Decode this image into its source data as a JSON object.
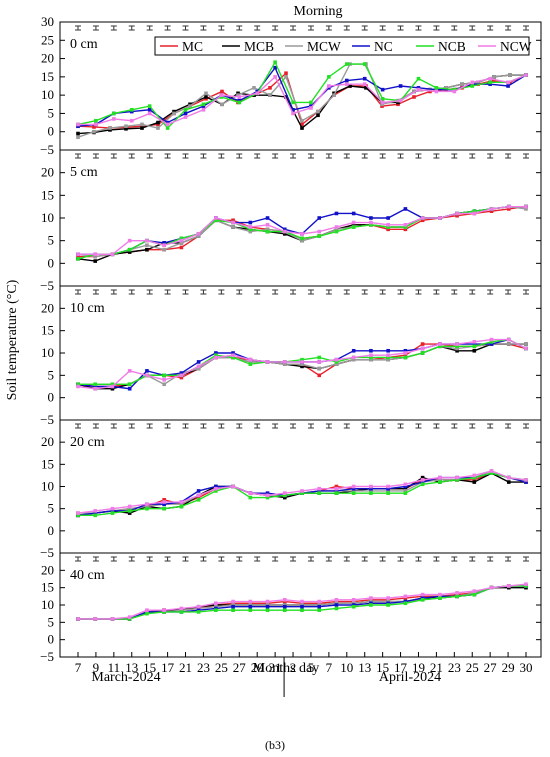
{
  "chart_data": {
    "type": "line",
    "title": "Morning",
    "ylabel": "Soil temperature (°C)",
    "xlabel": "Months day",
    "month_labels": [
      "March-2024",
      "April-2024"
    ],
    "panel_letter": "(b3)",
    "x_tick_labels": [
      "7",
      "9",
      "11",
      "13",
      "15",
      "17",
      "21",
      "23",
      "25",
      "27",
      "29",
      "31",
      "2",
      "5",
      "7",
      "10",
      "13",
      "15",
      "17",
      "19",
      "21",
      "23",
      "25",
      "27",
      "29",
      "30"
    ],
    "y_tick_labels": [
      "−5",
      "0",
      "5",
      "10",
      "15",
      "20",
      "25",
      "30"
    ],
    "ylim": [
      -5,
      30
    ],
    "legend": [
      "MC",
      "MCB",
      "MCW",
      "NC",
      "NCB",
      "NCW"
    ],
    "colors": {
      "MC": "#e8202a",
      "MCB": "#000000",
      "MCW": "#9a9a9a",
      "NC": "#1010c8",
      "NCB": "#22e022",
      "NCW": "#f07ae8"
    },
    "panels": [
      {
        "depth": "0 cm",
        "ymax": 30,
        "series": [
          {
            "name": "MC",
            "values": [
              1.5,
              1.3,
              1.0,
              1.2,
              1.5,
              2.0,
              5.0,
              7.0,
              9.0,
              11.0,
              8.0,
              10.0,
              12.0,
              16.0,
              2.0,
              5.5,
              10.0,
              12.5,
              12.5,
              7.0,
              7.5,
              9.5,
              11.0,
              11.5,
              12.0,
              13.0,
              14.0,
              13.5,
              15.5
            ]
          },
          {
            "name": "MCB",
            "values": [
              -0.5,
              -0.2,
              0.5,
              0.8,
              1.0,
              2.5,
              5.5,
              7.5,
              9.5,
              7.5,
              10.5,
              10.0,
              10.0,
              9.5,
              1.0,
              4.5,
              10.5,
              12.5,
              12.0,
              8.0,
              8.0,
              11.0,
              11.5,
              12.0,
              13.0,
              13.5,
              15.0,
              15.5,
              15.5
            ]
          },
          {
            "name": "MCW",
            "values": [
              -1.5,
              0.0,
              1.0,
              1.5,
              2.0,
              1.0,
              5.0,
              7.0,
              10.5,
              7.5,
              10.0,
              12.0,
              10.0,
              15.0,
              3.0,
              5.5,
              10.0,
              18.5,
              18.5,
              7.5,
              8.5,
              11.0,
              11.5,
              12.0,
              13.0,
              13.5,
              15.0,
              15.5,
              15.5
            ]
          },
          {
            "name": "NC",
            "values": [
              1.5,
              2.0,
              5.0,
              5.5,
              6.0,
              2.5,
              5.0,
              7.0,
              10.0,
              8.5,
              11.0,
              17.5,
              6.0,
              7.0,
              12.0,
              14.0,
              14.5,
              11.5,
              12.5,
              12.0,
              11.5,
              11.5,
              13.0,
              13.0,
              12.5,
              15.5
            ]
          },
          {
            "name": "NCB",
            "values": [
              2.0,
              3.0,
              5.0,
              6.0,
              7.0,
              1.0,
              6.0,
              7.5,
              9.5,
              8.0,
              10.5,
              19.0,
              8.0,
              8.0,
              15.0,
              18.5,
              18.5,
              9.0,
              8.5,
              14.5,
              12.0,
              11.5,
              12.5,
              13.5,
              13.5,
              15.5
            ]
          },
          {
            "name": "NCW",
            "values": [
              2.0,
              2.0,
              3.5,
              3.0,
              5.0,
              2.0,
              4.0,
              6.0,
              10.0,
              9.5,
              10.5,
              15.0,
              5.0,
              6.5,
              12.5,
              13.0,
              13.0,
              8.0,
              8.5,
              11.5,
              11.0,
              11.0,
              13.5,
              14.5,
              13.5,
              15.5
            ]
          }
        ]
      },
      {
        "depth": "5 cm",
        "ymax": 25,
        "series": [
          {
            "name": "MC",
            "values": [
              1.5,
              1.5,
              2.0,
              2.5,
              3.0,
              3.0,
              3.5,
              6.0,
              9.5,
              9.5,
              8.0,
              7.5,
              7.0,
              5.5,
              6.0,
              7.5,
              8.5,
              8.5,
              7.5,
              7.5,
              9.5,
              10.0,
              10.5,
              11.0,
              11.5,
              12.0,
              12.5
            ]
          },
          {
            "name": "MCB",
            "values": [
              1.0,
              0.5,
              2.0,
              2.5,
              3.0,
              4.5,
              4.5,
              6.0,
              9.5,
              8.0,
              7.5,
              7.0,
              6.5,
              5.0,
              6.0,
              7.5,
              8.5,
              8.5,
              8.0,
              8.0,
              10.0,
              10.0,
              11.0,
              11.5,
              12.0,
              12.5,
              12.5
            ]
          },
          {
            "name": "MCW",
            "values": [
              2.0,
              1.5,
              2.0,
              3.0,
              4.0,
              3.0,
              4.5,
              6.0,
              9.5,
              8.0,
              7.0,
              7.5,
              7.0,
              5.0,
              6.0,
              7.5,
              8.0,
              8.5,
              8.0,
              8.0,
              10.0,
              10.0,
              11.0,
              11.5,
              12.0,
              12.5,
              12.0
            ]
          },
          {
            "name": "NC",
            "values": [
              2.0,
              2.0,
              2.0,
              3.0,
              5.0,
              4.5,
              5.5,
              6.5,
              10.0,
              9.0,
              9.0,
              10.0,
              7.5,
              6.5,
              10.0,
              11.0,
              11.0,
              10.0,
              10.0,
              12.0,
              10.0,
              10.0,
              11.0,
              11.5,
              12.0,
              12.5,
              12.5
            ]
          },
          {
            "name": "NCB",
            "values": [
              1.0,
              2.0,
              2.0,
              3.0,
              5.0,
              4.0,
              5.5,
              6.5,
              9.5,
              9.0,
              7.5,
              7.0,
              7.0,
              5.5,
              6.0,
              7.0,
              8.0,
              8.5,
              8.0,
              8.0,
              10.0,
              10.0,
              11.0,
              11.5,
              12.0,
              12.5,
              12.5
            ]
          },
          {
            "name": "NCW",
            "values": [
              2.0,
              2.0,
              2.0,
              5.0,
              5.0,
              4.0,
              5.0,
              6.5,
              10.0,
              9.0,
              8.0,
              8.5,
              7.0,
              6.5,
              7.0,
              8.0,
              9.0,
              9.0,
              8.5,
              8.5,
              10.0,
              10.0,
              11.0,
              11.0,
              12.0,
              12.5,
              12.5
            ]
          }
        ]
      },
      {
        "depth": "10 cm",
        "ymax": 25,
        "series": [
          {
            "name": "MC",
            "values": [
              3.0,
              2.5,
              2.5,
              3.0,
              5.0,
              5.0,
              4.5,
              6.5,
              9.0,
              9.0,
              8.5,
              8.0,
              7.5,
              7.5,
              5.0,
              7.5,
              8.5,
              8.5,
              9.0,
              9.5,
              12.0,
              12.0,
              11.5,
              11.5,
              12.0,
              12.0,
              11.0
            ]
          },
          {
            "name": "MCB",
            "values": [
              3.0,
              2.0,
              2.0,
              3.0,
              5.0,
              5.0,
              5.0,
              6.5,
              9.0,
              9.0,
              8.0,
              8.0,
              7.5,
              7.0,
              6.5,
              7.5,
              8.5,
              8.5,
              8.5,
              9.0,
              10.0,
              11.5,
              10.5,
              10.5,
              12.0,
              12.0,
              12.0
            ]
          },
          {
            "name": "MCW",
            "values": [
              3.0,
              3.0,
              3.0,
              3.0,
              5.0,
              3.0,
              5.5,
              6.5,
              9.0,
              9.0,
              8.0,
              8.0,
              7.5,
              7.5,
              6.5,
              7.5,
              8.5,
              8.5,
              8.5,
              9.0,
              10.0,
              11.5,
              11.0,
              11.5,
              12.0,
              12.0,
              12.0
            ]
          },
          {
            "name": "NC",
            "values": [
              3.0,
              2.5,
              2.5,
              2.0,
              6.0,
              5.0,
              5.5,
              8.0,
              10.0,
              10.0,
              8.5,
              8.0,
              8.0,
              8.0,
              8.0,
              8.5,
              10.5,
              10.5,
              10.5,
              10.5,
              11.0,
              12.0,
              12.0,
              12.0,
              12.0,
              13.0,
              11.0
            ]
          },
          {
            "name": "NCB",
            "values": [
              3.0,
              3.0,
              3.0,
              3.0,
              5.0,
              5.0,
              5.0,
              7.0,
              9.5,
              9.0,
              7.5,
              8.0,
              8.0,
              8.5,
              9.0,
              8.0,
              9.0,
              9.0,
              9.0,
              9.0,
              10.0,
              11.5,
              11.5,
              11.5,
              12.5,
              13.0,
              11.0
            ]
          },
          {
            "name": "NCW",
            "values": [
              2.5,
              2.0,
              2.5,
              6.0,
              5.0,
              4.0,
              5.0,
              7.0,
              9.0,
              9.5,
              8.5,
              8.0,
              8.0,
              8.0,
              8.0,
              8.5,
              9.0,
              9.5,
              9.5,
              10.0,
              11.0,
              12.0,
              12.0,
              12.5,
              13.0,
              13.0,
              11.0
            ]
          }
        ]
      },
      {
        "depth": "20 cm",
        "ymax": 25,
        "series": [
          {
            "name": "MC",
            "values": [
              3.5,
              4.0,
              4.5,
              5.0,
              5.5,
              7.0,
              6.0,
              7.5,
              9.5,
              10.0,
              8.5,
              8.0,
              8.0,
              8.5,
              9.0,
              10.0,
              9.5,
              9.5,
              9.5,
              9.5,
              11.5,
              11.5,
              11.5,
              11.5,
              13.0,
              12.0,
              11.0
            ]
          },
          {
            "name": "MCB",
            "values": [
              3.5,
              4.0,
              4.5,
              4.0,
              5.5,
              5.0,
              5.5,
              8.0,
              10.0,
              10.0,
              8.5,
              8.0,
              7.5,
              8.5,
              8.5,
              8.5,
              9.0,
              9.5,
              9.5,
              9.5,
              12.0,
              11.0,
              11.5,
              11.0,
              13.0,
              11.0,
              11.0
            ]
          },
          {
            "name": "MCW",
            "values": [
              4.0,
              4.0,
              4.5,
              5.0,
              5.5,
              6.0,
              6.0,
              8.0,
              9.5,
              10.0,
              8.5,
              8.0,
              8.0,
              8.5,
              9.0,
              9.0,
              9.0,
              9.0,
              9.0,
              9.0,
              11.0,
              11.5,
              11.5,
              12.0,
              13.5,
              12.0,
              11.0
            ]
          },
          {
            "name": "NC",
            "values": [
              3.5,
              4.0,
              4.5,
              4.5,
              6.0,
              6.0,
              6.5,
              9.0,
              10.0,
              10.0,
              8.5,
              8.5,
              8.0,
              8.5,
              9.0,
              9.0,
              9.5,
              9.5,
              9.5,
              10.0,
              11.0,
              12.0,
              12.0,
              12.0,
              13.0,
              12.0,
              11.0
            ]
          },
          {
            "name": "NCB",
            "values": [
              3.5,
              3.5,
              4.0,
              4.5,
              5.0,
              5.0,
              5.5,
              7.0,
              9.0,
              10.0,
              7.5,
              7.5,
              8.0,
              8.5,
              8.5,
              8.5,
              8.5,
              8.5,
              8.5,
              8.5,
              10.5,
              11.0,
              11.5,
              12.0,
              13.0,
              12.0,
              11.5
            ]
          },
          {
            "name": "NCW",
            "values": [
              4.0,
              4.5,
              5.0,
              5.5,
              6.0,
              6.5,
              6.5,
              8.0,
              9.5,
              10.0,
              8.5,
              8.0,
              8.5,
              9.0,
              9.5,
              9.5,
              10.0,
              10.0,
              10.0,
              10.5,
              11.5,
              12.0,
              12.0,
              12.5,
              13.5,
              12.0,
              11.5
            ]
          }
        ]
      },
      {
        "depth": "40 cm",
        "ymax": 25,
        "series": [
          {
            "name": "MC",
            "values": [
              6.0,
              6.0,
              6.0,
              6.0,
              8.0,
              8.5,
              8.5,
              9.0,
              10.0,
              10.5,
              10.5,
              10.5,
              11.0,
              10.5,
              10.5,
              11.0,
              11.0,
              11.5,
              11.5,
              12.0,
              12.5,
              12.5,
              13.0,
              13.5,
              15.0,
              15.5,
              15.5
            ]
          },
          {
            "name": "MCB",
            "values": [
              6.0,
              6.0,
              6.0,
              6.0,
              8.0,
              8.5,
              8.5,
              9.5,
              10.0,
              10.0,
              10.0,
              10.0,
              10.0,
              10.0,
              10.0,
              10.5,
              10.5,
              11.0,
              11.0,
              11.0,
              12.0,
              12.0,
              12.5,
              13.0,
              15.0,
              15.0,
              15.0
            ]
          },
          {
            "name": "MCW",
            "values": [
              6.0,
              6.0,
              6.0,
              6.0,
              8.0,
              8.0,
              8.5,
              9.0,
              9.5,
              10.0,
              10.0,
              10.0,
              10.0,
              10.0,
              10.0,
              10.5,
              10.5,
              11.0,
              11.0,
              11.0,
              11.5,
              12.0,
              12.5,
              13.5,
              15.0,
              15.5,
              15.5
            ]
          },
          {
            "name": "NC",
            "values": [
              6.0,
              6.0,
              6.0,
              6.0,
              8.0,
              8.0,
              8.0,
              8.5,
              9.0,
              9.5,
              9.5,
              9.5,
              9.5,
              9.5,
              9.5,
              10.0,
              10.0,
              10.5,
              10.5,
              11.0,
              12.0,
              12.5,
              12.5,
              13.0,
              15.0,
              15.5,
              15.5
            ]
          },
          {
            "name": "NCB",
            "values": [
              6.0,
              6.0,
              6.0,
              6.0,
              7.5,
              8.0,
              8.0,
              8.0,
              8.5,
              8.5,
              8.5,
              8.5,
              8.5,
              8.5,
              8.5,
              9.0,
              9.5,
              10.0,
              10.0,
              10.5,
              11.5,
              12.0,
              12.5,
              13.0,
              15.0,
              15.5,
              15.5
            ]
          },
          {
            "name": "NCW",
            "values": [
              6.0,
              6.0,
              6.0,
              6.5,
              8.5,
              8.5,
              9.0,
              9.5,
              10.5,
              11.0,
              11.0,
              11.0,
              11.5,
              11.0,
              11.0,
              11.5,
              11.5,
              12.0,
              12.0,
              12.5,
              13.0,
              13.0,
              13.5,
              14.0,
              15.0,
              15.5,
              16.0
            ]
          }
        ]
      }
    ]
  }
}
